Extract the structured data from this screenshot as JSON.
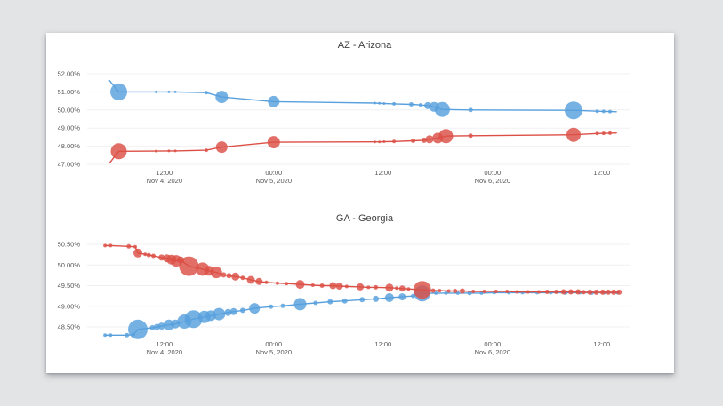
{
  "page": {
    "background_color": "#e3e4e6",
    "card_color": "#ffffff"
  },
  "chart_data": [
    {
      "type": "line",
      "title": "AZ - Arizona",
      "legend": "none",
      "grid": "horizontal-faint",
      "x_axis": {
        "unit": "hours since 2020-11-04 00:00",
        "range": [
          5,
          63
        ],
        "ticks": [
          {
            "t": 12,
            "line1": "12:00",
            "line2": "Nov 4, 2020"
          },
          {
            "t": 24,
            "line1": "00:00",
            "line2": "Nov 5, 2020"
          },
          {
            "t": 36,
            "line1": "12:00",
            "line2": ""
          },
          {
            "t": 48,
            "line1": "00:00",
            "line2": "Nov 6, 2020"
          },
          {
            "t": 60,
            "line1": "12:00",
            "line2": ""
          }
        ]
      },
      "y_axis": {
        "unit": "percent of vote",
        "range": [
          46.8,
          52.4
        ],
        "ticks": [
          {
            "value": 52,
            "label": "52.00%"
          },
          {
            "value": 51,
            "label": "51.00%"
          },
          {
            "value": 50,
            "label": "50.00%"
          },
          {
            "value": 49,
            "label": "49.00%"
          },
          {
            "value": 48,
            "label": "48.00%"
          },
          {
            "value": 47,
            "label": "47.00%"
          }
        ]
      },
      "series": [
        {
          "id": "blue",
          "color": "#58a0dd",
          "point_format": "[t_hours, percent, marker_radius_px]",
          "points": [
            [
              6.0,
              51.62,
              0
            ],
            [
              7.0,
              51.0,
              9.5
            ],
            [
              11.1,
              51.0,
              1.5
            ],
            [
              12.5,
              51.0,
              1.5
            ],
            [
              13.2,
              51.0,
              1.5
            ],
            [
              16.6,
              50.96,
              2
            ],
            [
              18.3,
              50.72,
              7
            ],
            [
              24.0,
              50.46,
              6.5
            ],
            [
              35.1,
              50.38,
              1.5
            ],
            [
              35.6,
              50.37,
              1.5
            ],
            [
              36.1,
              50.36,
              1.5
            ],
            [
              37.2,
              50.34,
              2
            ],
            [
              39.1,
              50.31,
              2.5
            ],
            [
              40.1,
              50.28,
              2
            ],
            [
              40.9,
              50.24,
              4
            ],
            [
              41.6,
              50.17,
              5.5
            ],
            [
              42.5,
              50.03,
              8.5
            ],
            [
              45.6,
              50.0,
              2.5
            ],
            [
              56.9,
              49.98,
              10
            ],
            [
              59.5,
              49.93,
              2
            ],
            [
              60.2,
              49.92,
              2
            ],
            [
              60.9,
              49.91,
              2
            ],
            [
              61.6,
              49.9,
              0
            ]
          ]
        },
        {
          "id": "red",
          "color": "#dc4f45",
          "point_format": "[t_hours, percent, marker_radius_px]",
          "points": [
            [
              6.0,
              47.08,
              0
            ],
            [
              7.0,
              47.72,
              9
            ],
            [
              11.1,
              47.73,
              1.5
            ],
            [
              12.5,
              47.74,
              1.5
            ],
            [
              13.2,
              47.74,
              1.5
            ],
            [
              16.6,
              47.78,
              2
            ],
            [
              18.3,
              47.95,
              6.5
            ],
            [
              24.0,
              48.22,
              7
            ],
            [
              35.1,
              48.24,
              1.5
            ],
            [
              35.6,
              48.24,
              1.5
            ],
            [
              36.1,
              48.25,
              1.5
            ],
            [
              37.2,
              48.26,
              2
            ],
            [
              39.3,
              48.3,
              2.5
            ],
            [
              40.5,
              48.33,
              3
            ],
            [
              41.1,
              48.38,
              4.5
            ],
            [
              42.0,
              48.45,
              6
            ],
            [
              42.9,
              48.56,
              8
            ],
            [
              45.6,
              48.58,
              2.5
            ],
            [
              56.9,
              48.63,
              8
            ],
            [
              59.5,
              48.7,
              2
            ],
            [
              60.2,
              48.71,
              2
            ],
            [
              60.9,
              48.72,
              2
            ],
            [
              61.6,
              48.73,
              0
            ]
          ]
        }
      ]
    },
    {
      "type": "line",
      "title": "GA - Georgia",
      "legend": "none",
      "grid": "horizontal-faint",
      "x_axis": {
        "unit": "hours since 2020-11-04 00:00",
        "range": [
          5,
          63
        ],
        "ticks": [
          {
            "t": 12,
            "line1": "12:00",
            "line2": "Nov 4, 2020"
          },
          {
            "t": 24,
            "line1": "00:00",
            "line2": "Nov 5, 2020"
          },
          {
            "t": 36,
            "line1": "12:00",
            "line2": ""
          },
          {
            "t": 48,
            "line1": "00:00",
            "line2": "Nov 6, 2020"
          },
          {
            "t": 60,
            "line1": "12:00",
            "line2": ""
          }
        ]
      },
      "y_axis": {
        "unit": "percent of vote",
        "range": [
          48.15,
          50.65
        ],
        "ticks": [
          {
            "value": 50.5,
            "label": "50.50%"
          },
          {
            "value": 50.0,
            "label": "50.00%"
          },
          {
            "value": 49.5,
            "label": "49.50%"
          },
          {
            "value": 49.0,
            "label": "49.00%"
          },
          {
            "value": 48.5,
            "label": "48.50%"
          }
        ]
      },
      "series": [
        {
          "id": "blue",
          "color": "#58a0dd",
          "point_format": "[t_hours, percent, marker_radius_px]",
          "points": [
            [
              5.5,
              48.3,
              2
            ],
            [
              6.1,
              48.3,
              2
            ],
            [
              7.9,
              48.3,
              2.5
            ],
            [
              8.6,
              48.31,
              2
            ],
            [
              9.1,
              48.44,
              11
            ],
            [
              10.7,
              48.48,
              3
            ],
            [
              11.2,
              48.5,
              3.5
            ],
            [
              11.7,
              48.52,
              4
            ],
            [
              12.5,
              48.55,
              6
            ],
            [
              13.2,
              48.57,
              5
            ],
            [
              14.2,
              48.63,
              8
            ],
            [
              15.2,
              48.69,
              10
            ],
            [
              16.4,
              48.74,
              7
            ],
            [
              17.1,
              48.77,
              6
            ],
            [
              18.0,
              48.81,
              7
            ],
            [
              19.0,
              48.85,
              4
            ],
            [
              19.6,
              48.87,
              4
            ],
            [
              20.6,
              48.9,
              3
            ],
            [
              21.9,
              48.95,
              6
            ],
            [
              23.7,
              48.99,
              2.5
            ],
            [
              25.0,
              49.01,
              2.5
            ],
            [
              26.9,
              49.05,
              7
            ],
            [
              28.6,
              49.08,
              2.5
            ],
            [
              30.2,
              49.11,
              3
            ],
            [
              31.8,
              49.13,
              3
            ],
            [
              33.7,
              49.16,
              3
            ],
            [
              35.2,
              49.18,
              3.5
            ],
            [
              36.7,
              49.21,
              5
            ],
            [
              38.1,
              49.23,
              4
            ],
            [
              39.3,
              49.25,
              2.5
            ],
            [
              40.3,
              49.31,
              9
            ],
            [
              41.8,
              49.32,
              2
            ],
            [
              42.9,
              49.32,
              2
            ],
            [
              44.2,
              49.32,
              2
            ],
            [
              45.5,
              49.32,
              2.5
            ],
            [
              46.8,
              49.32,
              2
            ],
            [
              48.2,
              49.33,
              2
            ],
            [
              49.8,
              49.33,
              2
            ],
            [
              51.3,
              49.33,
              2
            ],
            [
              52.9,
              49.33,
              2
            ],
            [
              54.4,
              49.33,
              2
            ],
            [
              56.0,
              49.33,
              2.5
            ],
            [
              57.6,
              49.33,
              2
            ],
            [
              58.9,
              49.33,
              2.5
            ],
            [
              60.3,
              49.33,
              2
            ],
            [
              61.7,
              49.33,
              2
            ]
          ]
        },
        {
          "id": "red",
          "color": "#dc4f45",
          "point_format": "[t_hours, percent, marker_radius_px]",
          "points": [
            [
              5.5,
              50.47,
              2
            ],
            [
              6.1,
              50.47,
              2
            ],
            [
              8.1,
              50.45,
              2.5
            ],
            [
              8.8,
              50.44,
              2
            ],
            [
              9.1,
              50.29,
              5
            ],
            [
              9.9,
              50.26,
              2
            ],
            [
              10.3,
              50.24,
              2.5
            ],
            [
              10.8,
              50.22,
              2.5
            ],
            [
              11.7,
              50.18,
              3.5
            ],
            [
              12.3,
              50.16,
              4.5
            ],
            [
              12.8,
              50.13,
              5.5
            ],
            [
              13.3,
              50.1,
              6.5
            ],
            [
              13.8,
              50.12,
              4
            ],
            [
              14.7,
              49.97,
              11
            ],
            [
              16.2,
              49.9,
              7.5
            ],
            [
              16.9,
              49.86,
              5.5
            ],
            [
              17.7,
              49.82,
              6.5
            ],
            [
              18.5,
              49.76,
              3
            ],
            [
              19.1,
              49.74,
              3
            ],
            [
              19.8,
              49.72,
              4.5
            ],
            [
              20.6,
              49.69,
              2.5
            ],
            [
              21.5,
              49.64,
              4.5
            ],
            [
              22.4,
              49.6,
              4
            ],
            [
              23.2,
              49.58,
              2
            ],
            [
              24.4,
              49.56,
              2
            ],
            [
              25.4,
              49.55,
              2
            ],
            [
              26.9,
              49.53,
              5
            ],
            [
              28.3,
              49.51,
              2
            ],
            [
              29.3,
              49.5,
              2.5
            ],
            [
              30.5,
              49.5,
              4
            ],
            [
              31.2,
              49.49,
              4
            ],
            [
              32.0,
              49.48,
              2
            ],
            [
              33.5,
              49.47,
              4
            ],
            [
              34.4,
              49.46,
              2
            ],
            [
              35.2,
              49.46,
              2.5
            ],
            [
              36.7,
              49.45,
              4.5
            ],
            [
              37.5,
              49.44,
              2
            ],
            [
              38.1,
              49.43,
              3.5
            ],
            [
              38.8,
              49.42,
              2
            ],
            [
              40.3,
              49.4,
              10
            ],
            [
              41.5,
              49.38,
              2.5
            ],
            [
              42.2,
              49.38,
              2
            ],
            [
              43.2,
              49.37,
              2
            ],
            [
              43.9,
              49.37,
              2.5
            ],
            [
              44.7,
              49.37,
              3
            ],
            [
              45.9,
              49.36,
              2
            ],
            [
              47.1,
              49.36,
              2
            ],
            [
              48.4,
              49.36,
              2
            ],
            [
              49.6,
              49.36,
              2
            ],
            [
              50.7,
              49.35,
              2
            ],
            [
              51.9,
              49.35,
              2
            ],
            [
              53.1,
              49.35,
              2
            ],
            [
              54.0,
              49.35,
              2.5
            ],
            [
              55.0,
              49.35,
              2.5
            ],
            [
              55.8,
              49.35,
              3
            ],
            [
              56.6,
              49.35,
              3
            ],
            [
              57.4,
              49.35,
              3
            ],
            [
              58.0,
              49.34,
              2.5
            ],
            [
              58.7,
              49.34,
              3
            ],
            [
              59.4,
              49.34,
              3
            ],
            [
              60.1,
              49.34,
              3
            ],
            [
              60.7,
              49.34,
              3
            ],
            [
              61.3,
              49.34,
              3
            ],
            [
              61.9,
              49.34,
              3
            ]
          ]
        }
      ]
    }
  ]
}
